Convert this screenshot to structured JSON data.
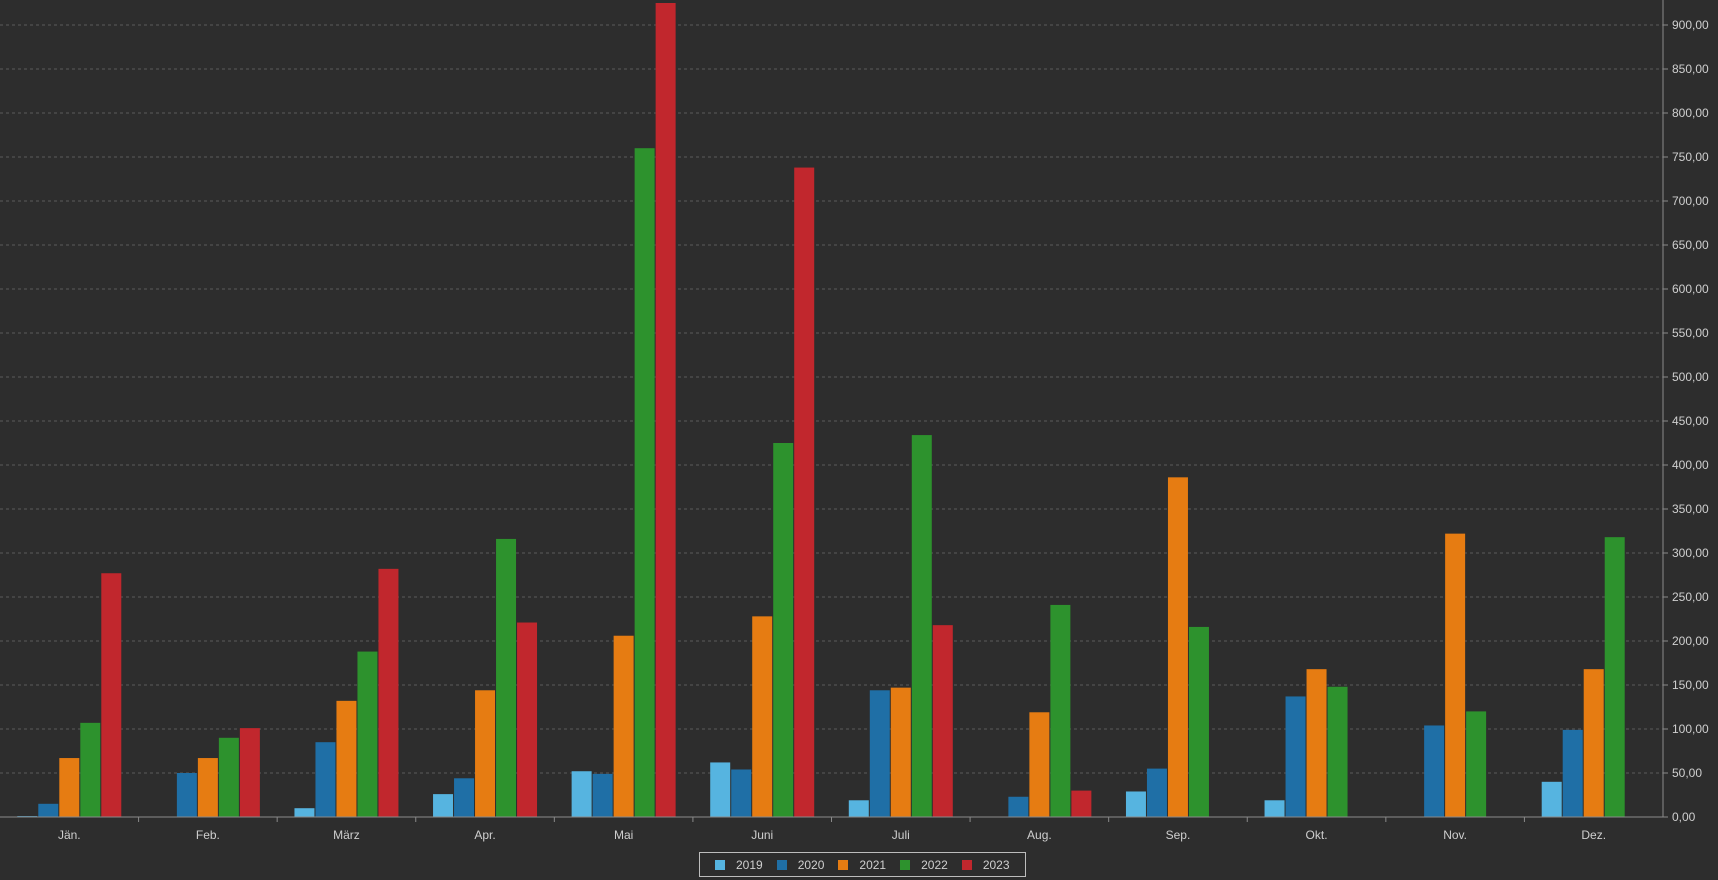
{
  "chart_data": {
    "type": "bar",
    "title": "",
    "xlabel": "",
    "ylabel": "",
    "ylim": [
      0,
      925
    ],
    "yticks": [
      0,
      50,
      100,
      150,
      200,
      250,
      300,
      350,
      400,
      450,
      500,
      550,
      600,
      650,
      700,
      750,
      800,
      850,
      900
    ],
    "ytick_labels": [
      "0,00",
      "50,00",
      "100,00",
      "150,00",
      "200,00",
      "250,00",
      "300,00",
      "350,00",
      "400,00",
      "450,00",
      "500,00",
      "550,00",
      "600,00",
      "650,00",
      "700,00",
      "750,00",
      "800,00",
      "850,00",
      "900,00"
    ],
    "yaxis_side": "right",
    "grid": true,
    "legend_position": "bottom-center",
    "categories": [
      "Jän.",
      "Feb.",
      "März",
      "Apr.",
      "Mai",
      "Juni",
      "Juli",
      "Aug.",
      "Sep.",
      "Okt.",
      "Nov.",
      "Dez."
    ],
    "series": [
      {
        "name": "2019",
        "color": "#56b4e0",
        "values": [
          1,
          0,
          10,
          26,
          52,
          62,
          19,
          0,
          29,
          19,
          0,
          40
        ]
      },
      {
        "name": "2020",
        "color": "#1f6fa6",
        "values": [
          15,
          50,
          85,
          44,
          49,
          54,
          144,
          23,
          55,
          137,
          104,
          99
        ]
      },
      {
        "name": "2021",
        "color": "#e67c12",
        "values": [
          67,
          67,
          132,
          144,
          206,
          228,
          147,
          119,
          386,
          168,
          322,
          168
        ]
      },
      {
        "name": "2022",
        "color": "#2d922d",
        "values": [
          107,
          90,
          188,
          316,
          760,
          425,
          434,
          241,
          216,
          148,
          120,
          318
        ]
      },
      {
        "name": "2023",
        "color": "#c1272d",
        "values": [
          277,
          101,
          282,
          221,
          925,
          738,
          218,
          30,
          0,
          0,
          0,
          0
        ]
      }
    ]
  }
}
